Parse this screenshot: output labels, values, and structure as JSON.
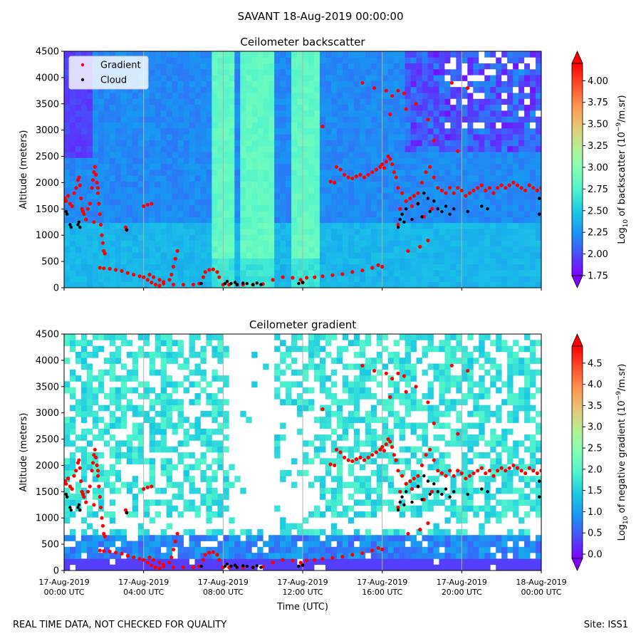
{
  "suptitle": "SAVANT 18-Aug-2019 00:00:00",
  "footer": {
    "left": "REAL TIME DATA, NOT CHECKED FOR QUALITY",
    "right": "Site: ISS1"
  },
  "colors": {
    "gradient_marker": "#ff0000",
    "cloud_marker": "#000000",
    "colormap": [
      "#7f00ff",
      "#4b4dfc",
      "#1996f3",
      "#1ac7e4",
      "#4cf2ce",
      "#80ffb4",
      "#b3f296",
      "#e6c774",
      "#ff964f",
      "#ff4d27",
      "#ff0000"
    ]
  },
  "chart_data": [
    {
      "type": "heatmap",
      "title": "Ceilometer backscatter",
      "xlabel": "",
      "ylabel": "Altitude (meters)",
      "ylim": [
        0,
        4500
      ],
      "yticks": [
        "0",
        "500",
        "1000",
        "1500",
        "2000",
        "2500",
        "3000",
        "3500",
        "4000",
        "4500"
      ],
      "xlim_hours": [
        0,
        24
      ],
      "x_grid_hours": [
        4,
        8,
        12,
        16,
        20
      ],
      "grid": true,
      "legend": {
        "placement": "top-left",
        "entries": [
          "Gradient",
          "Cloud"
        ]
      },
      "colorbar": {
        "label": "Log10 of backscatter (10-9/m.sr)",
        "label_parts": [
          "Log",
          "10",
          " of backscatter (10",
          "−9",
          "/m.sr)"
        ],
        "range": [
          1.75,
          4.2
        ],
        "ticks": [
          "1.75",
          "2.00",
          "2.25",
          "2.50",
          "2.75",
          "3.00",
          "3.25",
          "3.50",
          "3.75",
          "4.00"
        ],
        "extend": "both"
      },
      "field_description_values": {
        "typical_low_level": 2.4,
        "typical_upper_level": 2.2,
        "bright_columns_hours": [
          [
            7.5,
            8.5
          ],
          [
            8.8,
            10.5
          ],
          [
            11.3,
            12.8
          ]
        ],
        "bright_column_value": 2.9
      }
    },
    {
      "type": "heatmap",
      "title": "Ceilometer gradient",
      "xlabel": "Time (UTC)",
      "ylabel": "Altitude (meters)",
      "ylim": [
        0,
        4500
      ],
      "yticks": [
        "0",
        "500",
        "1000",
        "1500",
        "2000",
        "2500",
        "3000",
        "3500",
        "4000",
        "4500"
      ],
      "xticks": [
        {
          "hour": 0,
          "date": "17-Aug-2019",
          "time": "00:00 UTC"
        },
        {
          "hour": 4,
          "date": "17-Aug-2019",
          "time": "04:00 UTC"
        },
        {
          "hour": 8,
          "date": "17-Aug-2019",
          "time": "08:00 UTC"
        },
        {
          "hour": 12,
          "date": "17-Aug-2019",
          "time": "12:00 UTC"
        },
        {
          "hour": 16,
          "date": "17-Aug-2019",
          "time": "16:00 UTC"
        },
        {
          "hour": 20,
          "date": "17-Aug-2019",
          "time": "20:00 UTC"
        },
        {
          "hour": 24,
          "date": "18-Aug-2019",
          "time": "00:00 UTC"
        }
      ],
      "grid": true,
      "colorbar": {
        "label": "Log10 of negative gradient (10-9/m.sr)",
        "label_parts": [
          "Log",
          "10",
          " of negative gradient (10",
          "−9",
          "/m.sr)"
        ],
        "range": [
          -0.1,
          4.9
        ],
        "ticks": [
          "0.0",
          "0.5",
          "1.0",
          "1.5",
          "2.0",
          "2.5",
          "3.0",
          "3.5",
          "4.0",
          "4.5"
        ],
        "extend": "both"
      }
    }
  ],
  "series": {
    "gradient_points": [
      [
        0.05,
        1700
      ],
      [
        0.1,
        1650
      ],
      [
        0.2,
        1750
      ],
      [
        0.3,
        1600
      ],
      [
        0.4,
        1550
      ],
      [
        0.5,
        1800
      ],
      [
        0.6,
        1900
      ],
      [
        0.7,
        2050
      ],
      [
        0.75,
        2100
      ],
      [
        0.8,
        1950
      ],
      [
        0.85,
        1700
      ],
      [
        0.9,
        1500
      ],
      [
        1.0,
        1400
      ],
      [
        1.1,
        1300
      ],
      [
        1.2,
        1500
      ],
      [
        1.3,
        1600
      ],
      [
        1.4,
        1900
      ],
      [
        1.45,
        2050
      ],
      [
        1.5,
        2200
      ],
      [
        1.55,
        2300
      ],
      [
        1.6,
        2150
      ],
      [
        1.65,
        2000
      ],
      [
        1.7,
        1800
      ],
      [
        1.75,
        1600
      ],
      [
        1.8,
        1400
      ],
      [
        1.85,
        1200
      ],
      [
        1.9,
        1000
      ],
      [
        1.95,
        850
      ],
      [
        2.0,
        700
      ],
      [
        2.05,
        650
      ],
      [
        1.7,
        1900
      ],
      [
        1.5,
        1250
      ],
      [
        0.95,
        1450
      ],
      [
        1.8,
        380
      ],
      [
        2.0,
        370
      ],
      [
        2.3,
        360
      ],
      [
        2.6,
        340
      ],
      [
        2.9,
        320
      ],
      [
        3.2,
        280
      ],
      [
        3.5,
        250
      ],
      [
        3.8,
        220
      ],
      [
        4.0,
        200
      ],
      [
        4.2,
        150
      ],
      [
        4.4,
        100
      ],
      [
        4.6,
        60
      ],
      [
        4.8,
        40
      ],
      [
        3.1,
        1150
      ],
      [
        3.15,
        1100
      ],
      [
        4.0,
        1550
      ],
      [
        4.2,
        1580
      ],
      [
        4.4,
        1600
      ],
      [
        4.3,
        250
      ],
      [
        4.5,
        200
      ],
      [
        4.8,
        150
      ],
      [
        5.0,
        110
      ],
      [
        5.3,
        150
      ],
      [
        5.4,
        250
      ],
      [
        5.5,
        400
      ],
      [
        5.6,
        550
      ],
      [
        5.7,
        700
      ],
      [
        5.0,
        80
      ],
      [
        5.5,
        60
      ],
      [
        6.0,
        60
      ],
      [
        6.5,
        60
      ],
      [
        6.8,
        80
      ],
      [
        7.0,
        200
      ],
      [
        7.1,
        300
      ],
      [
        7.3,
        340
      ],
      [
        7.5,
        350
      ],
      [
        7.7,
        300
      ],
      [
        7.8,
        200
      ],
      [
        8.0,
        60
      ],
      [
        8.3,
        60
      ],
      [
        8.7,
        60
      ],
      [
        9.0,
        60
      ],
      [
        9.5,
        60
      ],
      [
        10.0,
        70
      ],
      [
        10.5,
        150
      ],
      [
        11.0,
        200
      ],
      [
        11.5,
        190
      ],
      [
        11.9,
        150
      ],
      [
        12.0,
        100
      ],
      [
        12.2,
        190
      ],
      [
        12.6,
        200
      ],
      [
        13.0,
        220
      ],
      [
        13.5,
        240
      ],
      [
        14.0,
        260
      ],
      [
        14.5,
        300
      ],
      [
        15.0,
        330
      ],
      [
        15.5,
        380
      ],
      [
        15.8,
        430
      ],
      [
        16.0,
        400
      ],
      [
        13.0,
        3070
      ],
      [
        13.4,
        2020
      ],
      [
        13.6,
        2000
      ],
      [
        13.7,
        2300
      ],
      [
        13.9,
        2250
      ],
      [
        14.1,
        2150
      ],
      [
        14.3,
        2100
      ],
      [
        14.5,
        2080
      ],
      [
        14.7,
        2120
      ],
      [
        14.9,
        2150
      ],
      [
        15.1,
        2100
      ],
      [
        15.3,
        2150
      ],
      [
        15.5,
        2200
      ],
      [
        15.7,
        2250
      ],
      [
        15.9,
        2300
      ],
      [
        16.0,
        2350
      ],
      [
        16.1,
        2280
      ],
      [
        16.2,
        2400
      ],
      [
        16.3,
        2500
      ],
      [
        16.4,
        2450
      ],
      [
        16.5,
        2350
      ],
      [
        16.6,
        2200
      ],
      [
        16.7,
        2100
      ],
      [
        16.8,
        1900
      ],
      [
        17.0,
        1800
      ],
      [
        17.2,
        1650
      ],
      [
        17.4,
        1700
      ],
      [
        17.6,
        1750
      ],
      [
        17.8,
        1800
      ],
      [
        18.0,
        2000
      ],
      [
        18.2,
        2200
      ],
      [
        18.4,
        2300
      ],
      [
        18.6,
        2100
      ],
      [
        18.8,
        1900
      ],
      [
        19.0,
        1850
      ],
      [
        19.2,
        1800
      ],
      [
        19.4,
        1900
      ],
      [
        19.6,
        1800
      ],
      [
        19.8,
        1900
      ],
      [
        20.0,
        1850
      ],
      [
        20.2,
        1750
      ],
      [
        20.4,
        1800
      ],
      [
        20.6,
        1850
      ],
      [
        20.8,
        1900
      ],
      [
        21.0,
        1950
      ],
      [
        21.2,
        1850
      ],
      [
        21.4,
        1900
      ],
      [
        21.6,
        1800
      ],
      [
        21.8,
        1900
      ],
      [
        22.0,
        1950
      ],
      [
        22.2,
        1900
      ],
      [
        22.4,
        1950
      ],
      [
        22.6,
        2000
      ],
      [
        22.8,
        1950
      ],
      [
        23.0,
        1900
      ],
      [
        23.2,
        1850
      ],
      [
        23.4,
        1950
      ],
      [
        23.6,
        1900
      ],
      [
        23.8,
        1850
      ],
      [
        24.0,
        1900
      ],
      [
        15.0,
        3900
      ],
      [
        15.6,
        3800
      ],
      [
        16.2,
        3750
      ],
      [
        16.5,
        3650
      ],
      [
        17.1,
        3700
      ],
      [
        17.2,
        3400
      ],
      [
        17.7,
        3500
      ],
      [
        18.3,
        3200
      ],
      [
        18.6,
        2800
      ],
      [
        19.8,
        2600
      ],
      [
        19.5,
        3900
      ],
      [
        20.3,
        3800
      ],
      [
        16.8,
        3750
      ],
      [
        16.4,
        3300
      ],
      [
        17.3,
        700
      ],
      [
        17.9,
        780
      ],
      [
        18.3,
        900
      ],
      [
        16.8,
        1200
      ],
      [
        16.9,
        1500
      ],
      [
        17.5,
        1550
      ],
      [
        17.8,
        1600
      ],
      [
        18.1,
        1350
      ],
      [
        18.5,
        1500
      ]
    ],
    "cloud_points": [
      [
        0.1,
        1450
      ],
      [
        0.15,
        1400
      ],
      [
        0.3,
        1200
      ],
      [
        0.35,
        1150
      ],
      [
        0.7,
        1200
      ],
      [
        0.75,
        1250
      ],
      [
        0.8,
        1150
      ],
      [
        3.15,
        1100
      ],
      [
        6.9,
        80
      ],
      [
        8.1,
        80
      ],
      [
        8.2,
        120
      ],
      [
        8.4,
        80
      ],
      [
        8.6,
        100
      ],
      [
        8.7,
        60
      ],
      [
        9.0,
        90
      ],
      [
        9.2,
        80
      ],
      [
        9.5,
        60
      ],
      [
        9.7,
        90
      ],
      [
        9.9,
        60
      ],
      [
        11.8,
        80
      ],
      [
        12.0,
        100
      ],
      [
        16.8,
        1150
      ],
      [
        16.9,
        1300
      ],
      [
        17.0,
        1400
      ],
      [
        17.1,
        1250
      ],
      [
        17.2,
        1500
      ],
      [
        17.5,
        1300
      ],
      [
        17.8,
        1600
      ],
      [
        18.0,
        1350
      ],
      [
        18.1,
        1800
      ],
      [
        18.3,
        1700
      ],
      [
        18.4,
        1450
      ],
      [
        18.6,
        1650
      ],
      [
        18.8,
        1500
      ],
      [
        19.0,
        1450
      ],
      [
        19.2,
        1550
      ],
      [
        19.4,
        1400
      ],
      [
        19.6,
        1500
      ],
      [
        20.3,
        1450
      ],
      [
        21.0,
        1550
      ],
      [
        21.3,
        1500
      ],
      [
        23.9,
        1400
      ],
      [
        23.9,
        1700
      ]
    ]
  }
}
